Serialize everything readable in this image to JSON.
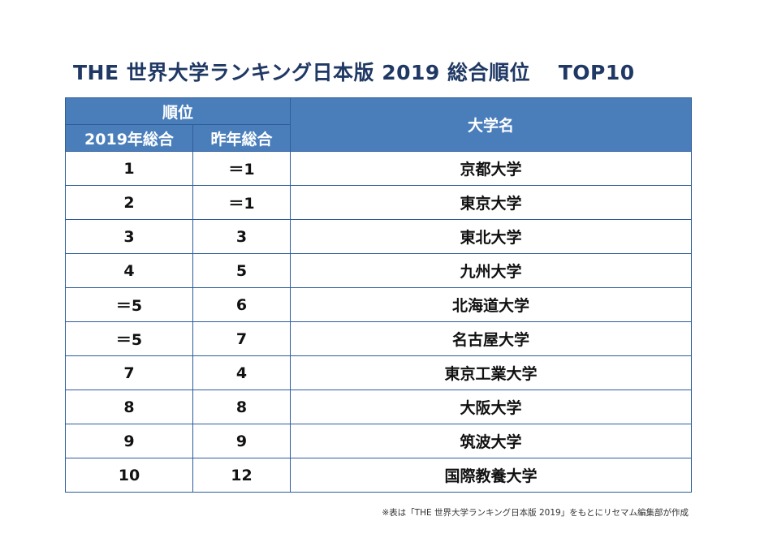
{
  "title": "THE 世界大学ランキング日本版 2019  総合順位　 TOP10",
  "table": {
    "header": {
      "rank_group": "順位",
      "rank_2019": "2019年総合",
      "rank_prev": "昨年総合",
      "university": "大学名"
    },
    "rows": [
      {
        "rank_2019": "1",
        "rank_prev": "＝1",
        "university": "京都大学"
      },
      {
        "rank_2019": "2",
        "rank_prev": "＝1",
        "university": "東京大学"
      },
      {
        "rank_2019": "3",
        "rank_prev": "3",
        "university": "東北大学"
      },
      {
        "rank_2019": "4",
        "rank_prev": "5",
        "university": "九州大学"
      },
      {
        "rank_2019": "＝5",
        "rank_prev": "6",
        "university": "北海道大学"
      },
      {
        "rank_2019": "＝5",
        "rank_prev": "7",
        "university": "名古屋大学"
      },
      {
        "rank_2019": "7",
        "rank_prev": "4",
        "university": "東京工業大学"
      },
      {
        "rank_2019": "8",
        "rank_prev": "8",
        "university": "大阪大学"
      },
      {
        "rank_2019": "9",
        "rank_prev": "9",
        "university": "筑波大学"
      },
      {
        "rank_2019": "10",
        "rank_prev": "12",
        "university": "国際教養大学"
      }
    ]
  },
  "footnote": "※表は「THE 世界大学ランキング日本版 2019」をもとにリセマム編集部が作成",
  "colors": {
    "title": "#1f3864",
    "header_bg": "#4a7ebb",
    "border": "#2e5d9a"
  }
}
